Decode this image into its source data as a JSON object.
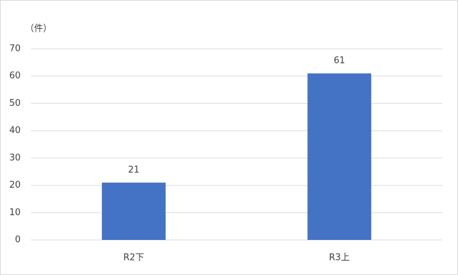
{
  "chart_data": {
    "type": "bar",
    "y_label": "（件）",
    "categories": [
      "R2下",
      "R3上"
    ],
    "values": [
      21,
      61
    ],
    "color": "#4472c4",
    "ylim": [
      0,
      70
    ],
    "yticks": [
      0,
      10,
      20,
      30,
      40,
      50,
      60,
      70
    ],
    "grid": true,
    "data_labels": true
  }
}
